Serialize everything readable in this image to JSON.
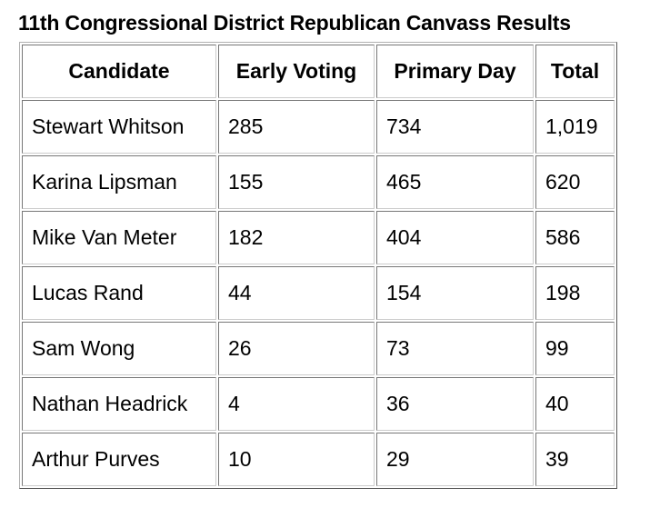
{
  "title": "11th Congressional District Republican Canvass Results",
  "table": {
    "header": [
      "Candidate",
      "Early Voting",
      "Primary Day",
      "Total"
    ],
    "rows": [
      [
        "Stewart Whitson",
        "285",
        "734",
        "1,019"
      ],
      [
        "Karina Lipsman",
        "155",
        "465",
        "620"
      ],
      [
        "Mike Van Meter",
        "182",
        "404",
        "586"
      ],
      [
        "Lucas Rand",
        "44",
        "154",
        "198"
      ],
      [
        "Sam Wong",
        "26",
        "73",
        "99"
      ],
      [
        "Nathan Headrick",
        "4",
        "36",
        "40"
      ],
      [
        "Arthur Purves",
        "10",
        "29",
        "39"
      ]
    ]
  }
}
